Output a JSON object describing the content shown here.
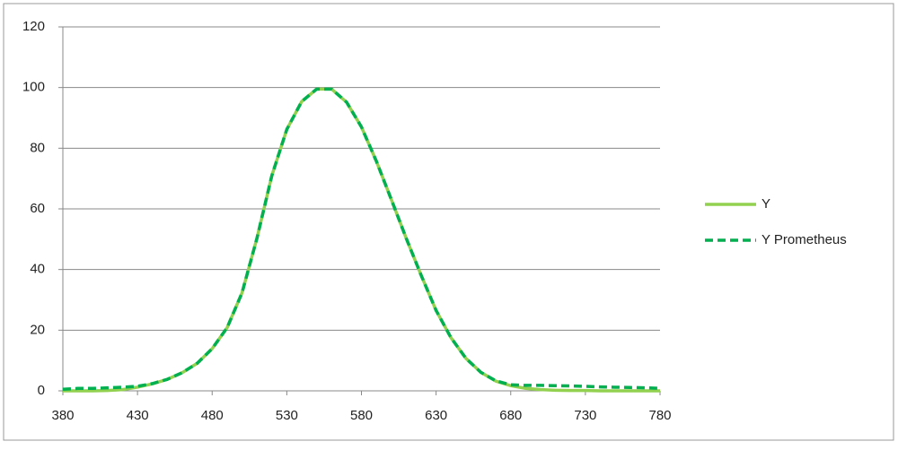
{
  "chart_data": {
    "type": "line",
    "x": [
      380,
      390,
      400,
      410,
      420,
      430,
      440,
      450,
      460,
      470,
      480,
      490,
      500,
      510,
      520,
      530,
      540,
      550,
      560,
      570,
      580,
      590,
      600,
      610,
      620,
      630,
      640,
      650,
      660,
      670,
      680,
      690,
      700,
      710,
      720,
      730,
      740,
      750,
      760,
      770,
      780
    ],
    "series": [
      {
        "name": "Y",
        "color": "#92d050",
        "dash": false,
        "values": [
          0,
          0,
          0,
          0.1,
          0.4,
          1.2,
          2.3,
          3.8,
          6,
          9.1,
          13.9,
          20.8,
          32.3,
          50.3,
          71,
          86.2,
          95.4,
          99.5,
          99.5,
          95.2,
          87,
          75.7,
          63.1,
          50.3,
          38.1,
          26.5,
          17.5,
          10.7,
          6.1,
          3.2,
          1.7,
          0.8,
          0.4,
          0.2,
          0.1,
          0.1,
          0,
          0,
          0,
          0,
          0
        ]
      },
      {
        "name": "Y Prometheus",
        "color": "#00b050",
        "dash": true,
        "values": [
          0.5,
          0.8,
          0.8,
          1,
          1.2,
          1.5,
          2.4,
          3.8,
          6,
          9.1,
          13.9,
          20.8,
          32.3,
          50.3,
          71,
          86.2,
          95.4,
          99.5,
          99.5,
          95.2,
          87,
          75.7,
          63.1,
          50.3,
          38.1,
          26.5,
          17.5,
          10.7,
          6.1,
          3.3,
          2,
          1.8,
          1.8,
          1.7,
          1.6,
          1.5,
          1.3,
          1.2,
          1.1,
          1,
          0.8
        ]
      }
    ],
    "xlim": [
      380,
      780
    ],
    "xticks": [
      380,
      430,
      480,
      530,
      580,
      630,
      680,
      730,
      780
    ],
    "ylim": [
      0,
      120
    ],
    "yticks": [
      0,
      20,
      40,
      60,
      80,
      100,
      120
    ],
    "grid": true,
    "legend": "right"
  }
}
